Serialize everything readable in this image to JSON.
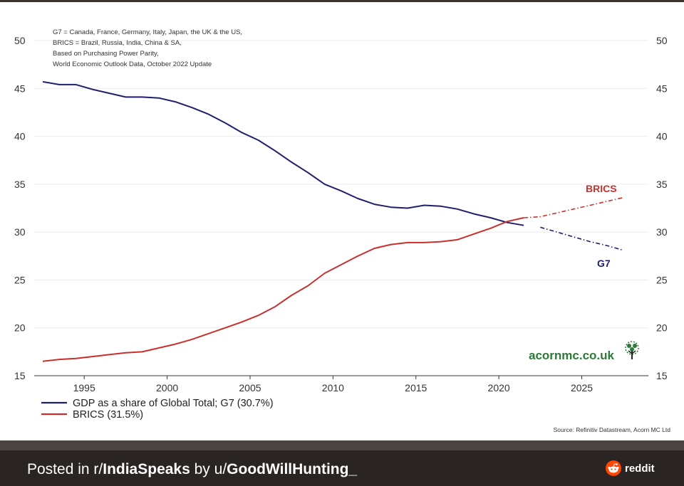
{
  "chart_data": {
    "type": "line",
    "notes": [
      "G7 = Canada, France, Germany, Italy, Japan, the UK & the US,",
      "BRICS = Brazil, Russia, India, China & SA,",
      "Based on Purchasing Power Parity,",
      "World Economic Outlook Data, October 2022 Update"
    ],
    "ylim": [
      15,
      50
    ],
    "xlim": [
      1992.5,
      2028.5
    ],
    "yticks": [
      "15",
      "20",
      "25",
      "30",
      "35",
      "40",
      "45",
      "50"
    ],
    "xticks": [
      "1995",
      "2000",
      "2005",
      "2010",
      "2015",
      "2020",
      "2025"
    ],
    "series": [
      {
        "name": "G7",
        "legend": "GDP as a share of Global Total; G7 (30.7%)",
        "label": "G7",
        "color": "#1f1f6e",
        "forecast_from": 2022,
        "x": [
          1992.5,
          1993.5,
          1994.5,
          1995.5,
          1996.5,
          1997.5,
          1998.5,
          1999.5,
          2000.5,
          2001.5,
          2002.5,
          2003.5,
          2004.5,
          2005.5,
          2006.5,
          2007.5,
          2008.5,
          2009.5,
          2010.5,
          2011.5,
          2012.5,
          2013.5,
          2014.5,
          2015.5,
          2016.5,
          2017.5,
          2018.5,
          2019.5,
          2020.5,
          2021.5,
          2022.5,
          2023.5,
          2024.5,
          2025.5,
          2026.5,
          2027.5
        ],
        "values": [
          45.7,
          45.4,
          45.4,
          44.9,
          44.5,
          44.1,
          44.1,
          44.0,
          43.6,
          43.0,
          42.3,
          41.4,
          40.4,
          39.6,
          38.5,
          37.3,
          36.2,
          35.0,
          34.3,
          33.5,
          32.9,
          32.6,
          32.5,
          32.8,
          32.7,
          32.4,
          31.9,
          31.5,
          31.0,
          30.7,
          30.5,
          30.0,
          29.5,
          29.0,
          28.6,
          28.1
        ]
      },
      {
        "name": "BRICS",
        "legend": "BRICS (31.5%)",
        "label": "BRICS",
        "color": "#c8302e",
        "forecast_from": 2021.5,
        "x": [
          1992.5,
          1993.5,
          1994.5,
          1995.5,
          1996.5,
          1997.5,
          1998.5,
          1999.5,
          2000.5,
          2001.5,
          2002.5,
          2003.5,
          2004.5,
          2005.5,
          2006.5,
          2007.5,
          2008.5,
          2009.5,
          2010.5,
          2011.5,
          2012.5,
          2013.5,
          2014.5,
          2015.5,
          2016.5,
          2017.5,
          2018.5,
          2019.5,
          2020.5,
          2021.5,
          2022.5,
          2023.5,
          2024.5,
          2025.5,
          2026.5,
          2027.5
        ],
        "values": [
          16.5,
          16.7,
          16.8,
          17.0,
          17.2,
          17.4,
          17.5,
          17.9,
          18.3,
          18.8,
          19.4,
          20.0,
          20.6,
          21.3,
          22.2,
          23.4,
          24.4,
          25.7,
          26.6,
          27.5,
          28.3,
          28.7,
          28.9,
          28.9,
          29.0,
          29.2,
          29.8,
          30.4,
          31.1,
          31.5,
          31.6,
          32.0,
          32.4,
          32.8,
          33.2,
          33.6
        ]
      }
    ],
    "watermark": "acornmc.co.uk",
    "source": "Source: Refinitiv Datastream, Acorn MC Ltd"
  },
  "footer": {
    "prefix": "Posted in r/",
    "subreddit": "IndiaSpeaks",
    "by": " by u/",
    "user": "GoodWillHunting_",
    "brand": "reddit"
  },
  "colors": {
    "reddit_orange": "#ff4500",
    "acorn_green": "#2d7a36",
    "grid": "#e6e6e6"
  }
}
